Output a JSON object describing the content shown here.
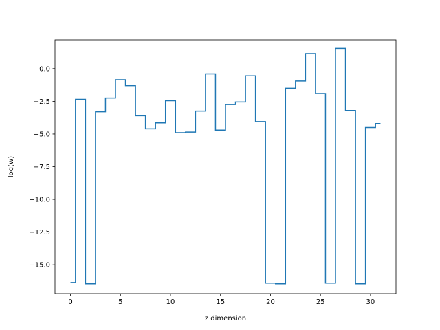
{
  "chart_data": {
    "type": "line",
    "drawstyle": "steps-mid",
    "title": "",
    "xlabel": "z dimension",
    "ylabel": "log(w)",
    "xlim": [
      -1.55,
      32.55
    ],
    "ylim": [
      -17.2,
      2.2
    ],
    "xticks": [
      0,
      5,
      10,
      15,
      20,
      25,
      30
    ],
    "xtick_labels": [
      "0",
      "5",
      "10",
      "15",
      "20",
      "25",
      "30"
    ],
    "yticks": [
      -15.0,
      -12.5,
      -10.0,
      -7.5,
      -5.0,
      -2.5,
      0.0
    ],
    "ytick_labels": [
      "−15.0",
      "−12.5",
      "−10.0",
      "−7.5",
      "−5.0",
      "−2.5",
      "0.0"
    ],
    "grid": false,
    "legend": "none",
    "color": "#1f77b4",
    "series": [
      {
        "x": [
          0,
          1,
          2,
          3,
          4,
          5,
          6,
          7,
          8,
          9,
          10,
          11,
          12,
          13,
          14,
          15,
          16,
          17,
          18,
          19,
          20,
          21,
          22,
          23,
          24,
          25,
          26,
          27,
          28,
          29,
          30,
          31
        ],
        "values": [
          -16.35,
          -2.35,
          -16.45,
          -3.3,
          -2.25,
          -0.85,
          -1.3,
          -3.6,
          -4.6,
          -4.15,
          -2.45,
          -4.9,
          -4.85,
          -3.25,
          -0.4,
          -4.7,
          -2.75,
          -2.55,
          -0.55,
          -4.05,
          -16.4,
          -16.45,
          -1.5,
          -0.95,
          1.15,
          -1.9,
          -16.4,
          1.55,
          -3.2,
          -16.45,
          -4.5,
          -4.2
        ]
      }
    ]
  }
}
